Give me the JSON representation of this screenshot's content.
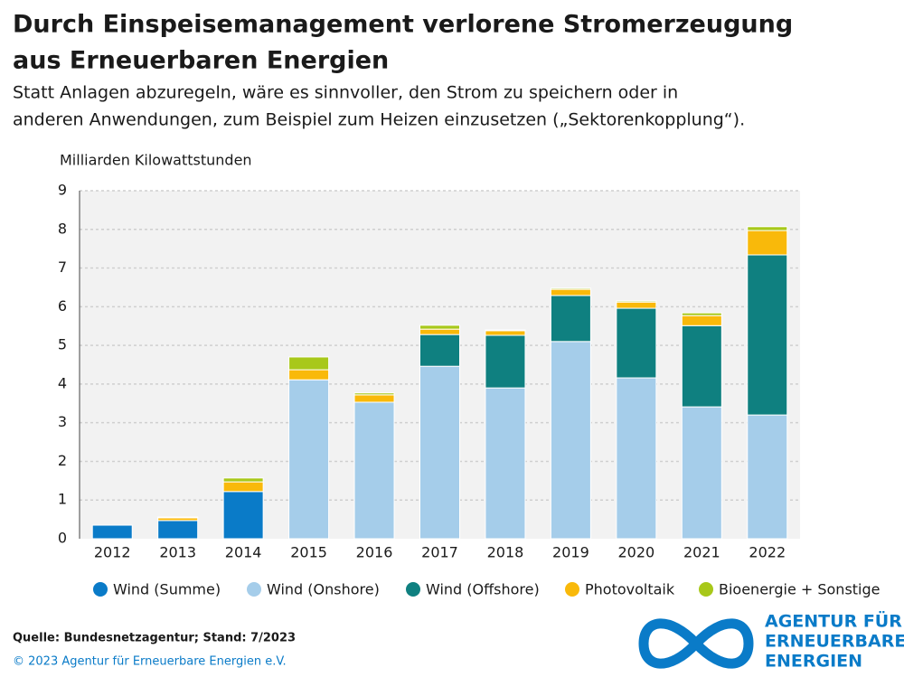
{
  "chart_data": {
    "type": "stacked-bar",
    "title": [
      "Durch Einspeisemanagement verlorene Stromerzeugung",
      "aus Erneuerbaren Energien"
    ],
    "subtitle": [
      "Statt Anlagen abzuregeln, wäre es sinnvoller, den Strom zu speichern oder in",
      "anderen Anwendungen, zum Beispiel zum Heizen einzusetzen („Sektorenkopplung“)."
    ],
    "y_label": "Milliarden Kilowattstunden",
    "categories": [
      "2012",
      "2013",
      "2014",
      "2015",
      "2016",
      "2017",
      "2018",
      "2019",
      "2020",
      "2021",
      "2022"
    ],
    "series": [
      {
        "name": "Wind (Summe)",
        "color": "#0a7bc8",
        "values": [
          0.35,
          0.47,
          1.22,
          null,
          null,
          null,
          null,
          null,
          null,
          null,
          null
        ]
      },
      {
        "name": "Wind (Onshore)",
        "color": "#a5cdea",
        "values": [
          null,
          null,
          null,
          4.11,
          3.53,
          4.46,
          3.9,
          5.1,
          4.16,
          3.41,
          3.2
        ]
      },
      {
        "name": "Wind (Offshore)",
        "color": "#0f8080",
        "values": [
          null,
          null,
          null,
          null,
          null,
          0.82,
          1.36,
          1.19,
          1.8,
          2.1,
          4.14
        ]
      },
      {
        "name": "Photovoltaik",
        "color": "#f9b90a",
        "values": [
          null,
          0.07,
          0.25,
          0.26,
          0.19,
          0.14,
          0.12,
          0.16,
          0.16,
          0.26,
          0.63
        ]
      },
      {
        "name": "Bioenergie + Sonstige",
        "color": "#a8c81a",
        "values": [
          null,
          0.02,
          0.1,
          0.33,
          0.05,
          0.1,
          0.02,
          0.03,
          0.03,
          0.07,
          0.1
        ]
      }
    ],
    "ylim": [
      0,
      9
    ],
    "yticks": [
      0,
      1,
      2,
      3,
      4,
      5,
      6,
      7,
      8,
      9
    ],
    "grid": true
  },
  "footer": {
    "source": "Quelle: Bundesnetzagentur; Stand: 7/2023",
    "copyright": "© 2023 Agentur für Erneuerbare Energien e.V.",
    "logo": [
      "AGENTUR FÜR",
      "ERNEUERBARE",
      "ENERGIEN"
    ]
  }
}
